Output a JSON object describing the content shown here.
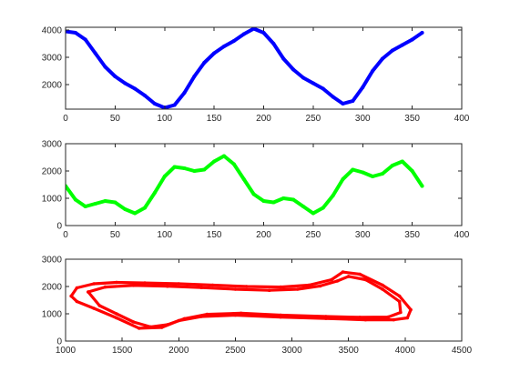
{
  "chart_data": [
    {
      "type": "line",
      "title": "",
      "xlabel": "",
      "ylabel": "",
      "xlim": [
        0,
        400
      ],
      "ylim": [
        1100,
        4100
      ],
      "xticks": [
        0,
        50,
        100,
        150,
        200,
        250,
        300,
        350,
        400
      ],
      "yticks": [
        2000,
        3000,
        4000
      ],
      "grid": false,
      "series": [
        {
          "color": "#0000ff",
          "x": [
            0,
            10,
            20,
            30,
            40,
            50,
            60,
            70,
            80,
            90,
            100,
            110,
            120,
            130,
            140,
            150,
            160,
            170,
            180,
            190,
            200,
            210,
            220,
            230,
            240,
            250,
            260,
            270,
            280,
            290,
            300,
            310,
            320,
            330,
            340,
            350,
            360
          ],
          "y": [
            3950,
            3900,
            3650,
            3150,
            2650,
            2300,
            2050,
            1850,
            1600,
            1300,
            1150,
            1250,
            1700,
            2300,
            2800,
            3150,
            3400,
            3600,
            3850,
            4050,
            3900,
            3500,
            2950,
            2550,
            2250,
            2050,
            1850,
            1550,
            1300,
            1400,
            1900,
            2500,
            2950,
            3250,
            3450,
            3650,
            3900
          ]
        }
      ]
    },
    {
      "type": "line",
      "title": "",
      "xlabel": "",
      "ylabel": "",
      "xlim": [
        0,
        400
      ],
      "ylim": [
        0,
        3000
      ],
      "xticks": [
        0,
        50,
        100,
        150,
        200,
        250,
        300,
        350,
        400
      ],
      "yticks": [
        0,
        1000,
        2000,
        3000
      ],
      "grid": false,
      "series": [
        {
          "color": "#00ff00",
          "x": [
            0,
            10,
            20,
            30,
            40,
            50,
            60,
            70,
            80,
            90,
            100,
            110,
            120,
            130,
            140,
            150,
            160,
            170,
            180,
            190,
            200,
            210,
            220,
            230,
            240,
            250,
            260,
            270,
            280,
            290,
            300,
            310,
            320,
            330,
            340,
            350,
            360
          ],
          "y": [
            1450,
            950,
            700,
            800,
            900,
            850,
            600,
            450,
            650,
            1200,
            1800,
            2150,
            2100,
            2000,
            2050,
            2350,
            2550,
            2250,
            1700,
            1150,
            900,
            850,
            1000,
            950,
            700,
            450,
            650,
            1100,
            1700,
            2050,
            1950,
            1800,
            1900,
            2200,
            2350,
            2000,
            1450
          ]
        }
      ]
    },
    {
      "type": "scatter",
      "title": "",
      "xlabel": "",
      "ylabel": "",
      "xlim": [
        1000,
        4500
      ],
      "ylim": [
        0,
        3000
      ],
      "xticks": [
        1000,
        1500,
        2000,
        2500,
        3000,
        3500,
        4000,
        4500
      ],
      "yticks": [
        0,
        1000,
        2000,
        3000
      ],
      "grid": false,
      "series": [
        {
          "color": "#ff0000",
          "x": [
            1050,
            1100,
            1250,
            1450,
            1700,
            2000,
            2300,
            2600,
            2900,
            3150,
            3350,
            3450,
            3600,
            3800,
            3950,
            4050,
            4020,
            3900,
            3650,
            3300,
            2900,
            2500,
            2200,
            2000,
            1850,
            1650,
            1450,
            1250,
            1100,
            1050
          ],
          "y": [
            1650,
            1950,
            2100,
            2150,
            2130,
            2100,
            2050,
            2000,
            1980,
            2050,
            2250,
            2530,
            2450,
            2050,
            1650,
            1150,
            850,
            780,
            780,
            830,
            880,
            950,
            900,
            750,
            500,
            470,
            850,
            1200,
            1450,
            1650
          ]
        },
        {
          "color": "#ff0000",
          "x": [
            1200,
            1350,
            1600,
            1900,
            2200,
            2500,
            2800,
            3050,
            3250,
            3400,
            3500,
            3650,
            3800,
            3950,
            3960,
            3850,
            3600,
            3300,
            2900,
            2550,
            2250,
            2050,
            1900,
            1750,
            1600,
            1450,
            1300,
            1200
          ],
          "y": [
            1800,
            1980,
            2040,
            2010,
            1960,
            1900,
            1860,
            1900,
            2020,
            2200,
            2370,
            2250,
            1900,
            1450,
            1050,
            880,
            870,
            900,
            950,
            1020,
            980,
            820,
            600,
            520,
            700,
            1000,
            1300,
            1800
          ]
        }
      ]
    }
  ]
}
